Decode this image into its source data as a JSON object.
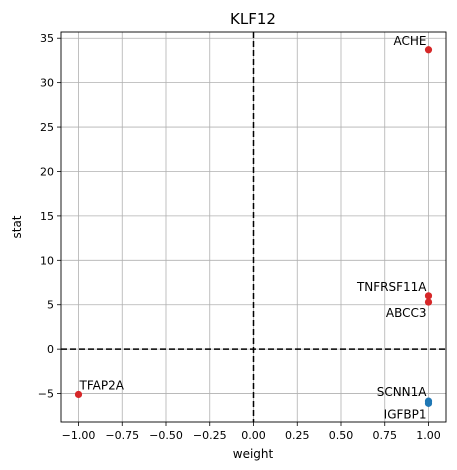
{
  "chart_data": {
    "type": "scatter",
    "title": "KLF12",
    "xlabel": "weight",
    "ylabel": "stat",
    "xlim": [
      -1.1,
      1.1
    ],
    "ylim": [
      -8.2,
      35.7
    ],
    "grid": true,
    "x_ticks": [
      -1.0,
      -0.75,
      -0.5,
      -0.25,
      0.0,
      0.25,
      0.5,
      0.75,
      1.0
    ],
    "x_tick_labels": [
      "−1.00",
      "−0.75",
      "−0.50",
      "−0.25",
      "0.00",
      "0.25",
      "0.50",
      "0.75",
      "1.00"
    ],
    "y_ticks": [
      -5,
      0,
      5,
      10,
      15,
      20,
      25,
      30,
      35
    ],
    "y_tick_labels": [
      "−5",
      "0",
      "5",
      "10",
      "15",
      "20",
      "25",
      "30",
      "35"
    ],
    "reference_lines": {
      "x": 0,
      "y": 0,
      "style": "dashed",
      "color": "#000000"
    },
    "points": [
      {
        "label": "ACHE",
        "x": 1.0,
        "y": 33.7,
        "color": "#d62728",
        "label_side": "left-above"
      },
      {
        "label": "TNFRSF11A",
        "x": 1.0,
        "y": 6.0,
        "color": "#d62728",
        "label_side": "left-above"
      },
      {
        "label": "ABCC3",
        "x": 1.0,
        "y": 5.3,
        "color": "#d62728",
        "label_side": "left-below"
      },
      {
        "label": "TFAP2A",
        "x": -1.0,
        "y": -5.1,
        "color": "#d62728",
        "label_side": "right-above"
      },
      {
        "label": "SCNN1A",
        "x": 1.0,
        "y": -5.85,
        "color": "#1f77b4",
        "label_side": "left-above"
      },
      {
        "label": "IGFBP1",
        "x": 1.0,
        "y": -6.1,
        "color": "#1f77b4",
        "label_side": "left-below"
      }
    ]
  }
}
